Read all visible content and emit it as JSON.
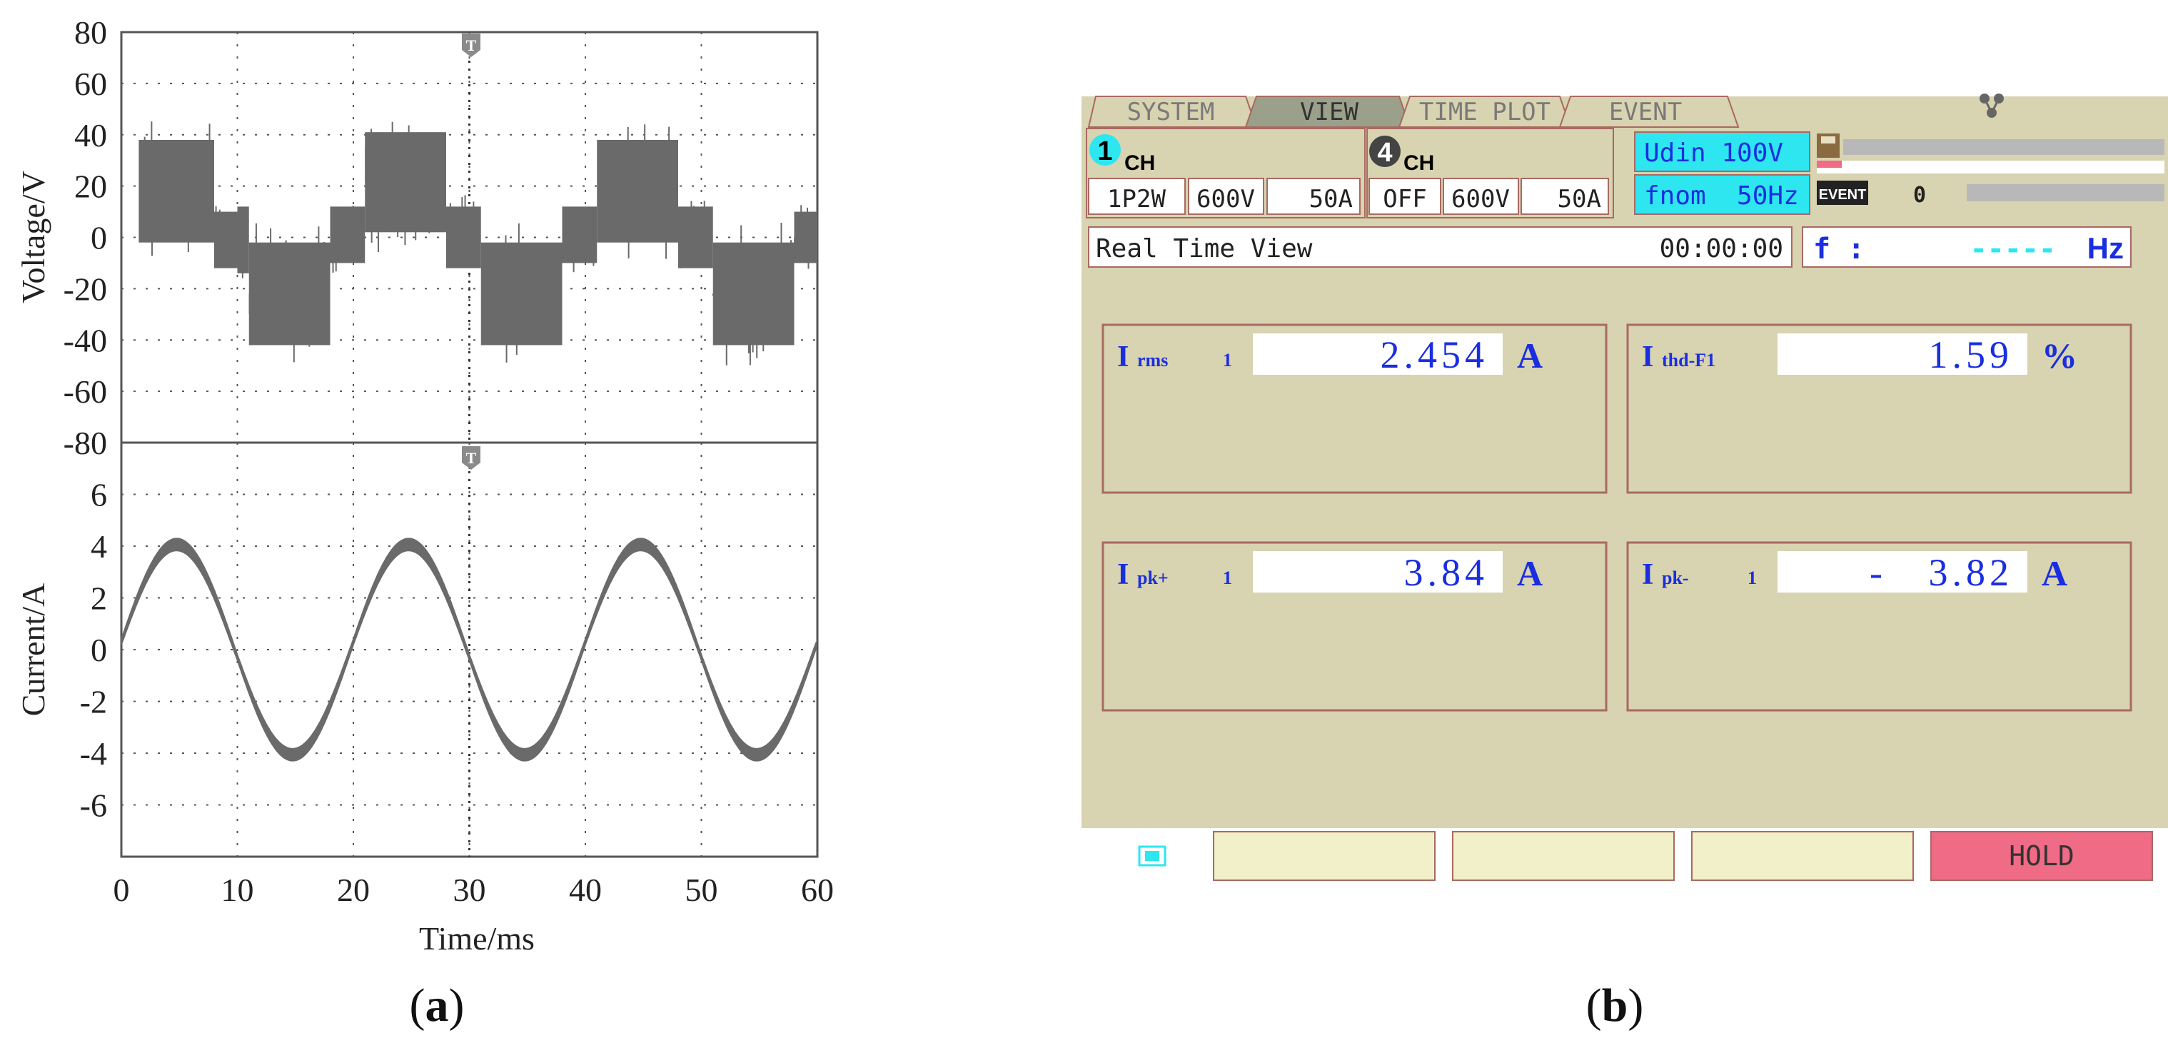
{
  "figure_labels": {
    "a_prefix": "(",
    "a_letter": "a",
    "a_suffix": ")",
    "b_prefix": "(",
    "b_letter": "b",
    "b_suffix": ")"
  },
  "chart_data": [
    {
      "type": "line",
      "panel": "voltage",
      "ylabel": "Voltage/V",
      "xlabel": "",
      "xlim": [
        0,
        60
      ],
      "ylim": [
        -80,
        80
      ],
      "yticks": [
        80,
        60,
        40,
        20,
        0,
        -20,
        -40,
        -60,
        -80
      ],
      "trigger_marker": "T",
      "series": [
        {
          "style": "filled-band",
          "segments": [
            {
              "x": [
                1.5,
                8
              ],
              "y": [
                -2,
                38
              ]
            },
            {
              "x": [
                8,
                10
              ],
              "y": [
                -12,
                10
              ]
            },
            {
              "x": [
                10,
                11
              ],
              "y": [
                -14,
                12
              ]
            },
            {
              "x": [
                11,
                18
              ],
              "y": [
                -42,
                -2
              ]
            },
            {
              "x": [
                18,
                21
              ],
              "y": [
                -10,
                12
              ]
            },
            {
              "x": [
                21,
                28
              ],
              "y": [
                2,
                41
              ]
            },
            {
              "x": [
                28,
                31
              ],
              "y": [
                -12,
                12
              ]
            },
            {
              "x": [
                31,
                38
              ],
              "y": [
                -42,
                -2
              ]
            },
            {
              "x": [
                38,
                41
              ],
              "y": [
                -10,
                12
              ]
            },
            {
              "x": [
                41,
                48
              ],
              "y": [
                -2,
                38
              ]
            },
            {
              "x": [
                48,
                51
              ],
              "y": [
                -12,
                12
              ]
            },
            {
              "x": [
                51,
                58
              ],
              "y": [
                -42,
                -2
              ]
            },
            {
              "x": [
                58,
                60
              ],
              "y": [
                -10,
                10
              ]
            }
          ]
        }
      ]
    },
    {
      "type": "line",
      "panel": "current",
      "ylabel": "Current/A",
      "xlabel": "Time/ms",
      "xlim": [
        0,
        60
      ],
      "ylim": [
        -8,
        8
      ],
      "yticks": [
        6,
        4,
        2,
        0,
        -2,
        -4,
        -6
      ],
      "xticks": [
        0,
        10,
        20,
        30,
        40,
        50,
        60
      ],
      "trigger_marker": "T",
      "series": [
        {
          "style": "sine",
          "amplitude": 4.05,
          "period_ms": 20,
          "phase_start_ms": 0,
          "offset": 0.3
        }
      ]
    }
  ],
  "meter": {
    "tabs": [
      "SYSTEM",
      "VIEW",
      "TIME PLOT",
      "EVENT"
    ],
    "active_tab": "VIEW",
    "network_icon": "network-icon",
    "ch1": {
      "num": "1",
      "label": "CH",
      "wiring": "1P2W",
      "range_v": "600V",
      "range_a": "50A"
    },
    "ch4": {
      "num": "4",
      "label": "CH",
      "wiring": "OFF",
      "range_v": "600V",
      "range_a": "50A"
    },
    "udin": "Udin 100V",
    "fnom": "fnom  50Hz",
    "event_badge": "EVENT",
    "event_count": "0",
    "sd_icon": "sd-card-icon",
    "view_title": "Real Time View",
    "elapsed": "00:00:00",
    "freq_label": "f :",
    "freq_value": "-----",
    "freq_unit": "Hz",
    "readings": [
      {
        "name": "I",
        "sub": "rms",
        "ch": "1",
        "value": "2.454",
        "unit": "A"
      },
      {
        "name": "I",
        "sub": "thd-F1",
        "ch": "",
        "value": "1.59",
        "unit": "%"
      },
      {
        "name": "I",
        "sub": "pk+",
        "ch": "1",
        "value": "3.84",
        "unit": "A"
      },
      {
        "name": "I",
        "sub": "pk-",
        "ch": "1",
        "value": "-   3.82",
        "unit": "A"
      }
    ],
    "battery_icon": "battery-icon",
    "function_keys": [
      "",
      "",
      "",
      "HOLD"
    ],
    "colors": {
      "background": "#d8d3b0",
      "tab_active": "#9aa08a",
      "cyan": "#2ee6f0",
      "blue_text": "#1a2ee0",
      "panel_border": "#a86a62",
      "key_bg": "#f2f0c8",
      "hold_bg": "#f06b86",
      "trace": "#6a6a6a"
    }
  }
}
